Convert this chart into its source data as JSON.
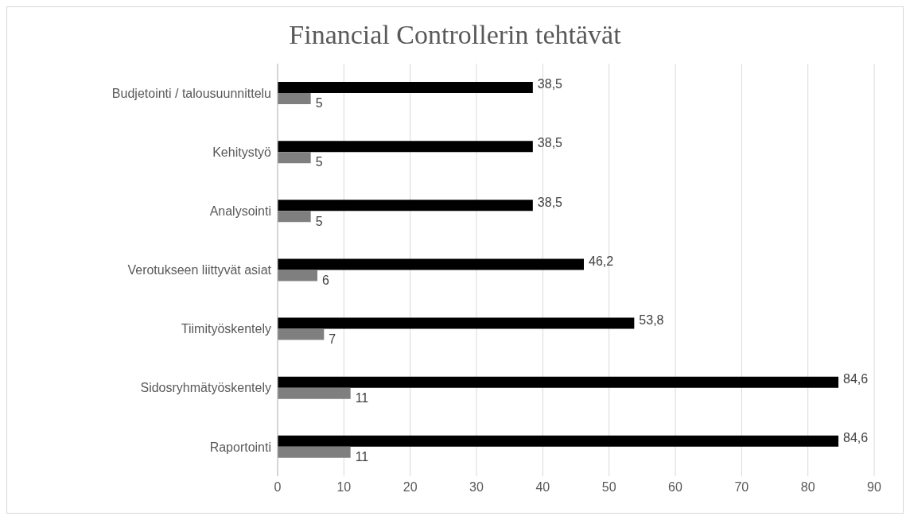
{
  "chart_data": {
    "type": "bar",
    "orientation": "horizontal",
    "title": "Financial Controllerin tehtävät",
    "categories": [
      "Budjetointi / talousuunnittelu",
      "Kehitystyö",
      "Analysointi",
      "Verotukseen liittyvät asiat",
      "Tiimityöskentely",
      "Sidosryhmätyöskentely",
      "Raportointi"
    ],
    "series": [
      {
        "color": "#000000",
        "values": [
          38.5,
          38.5,
          38.5,
          46.2,
          53.8,
          84.6,
          84.6
        ],
        "value_labels": [
          "38,5",
          "38,5",
          "38,5",
          "46,2",
          "53,8",
          "84,6",
          "84,6"
        ]
      },
      {
        "color": "#7f7f7f",
        "values": [
          5,
          5,
          5,
          6,
          7,
          11,
          11
        ],
        "value_labels": [
          "5",
          "5",
          "5",
          "6",
          "7",
          "11",
          "11"
        ]
      }
    ],
    "xlim": [
      0,
      90
    ],
    "xticks": [
      0,
      10,
      20,
      30,
      40,
      50,
      60,
      70,
      80,
      90
    ],
    "grid": "x",
    "legend": false
  }
}
